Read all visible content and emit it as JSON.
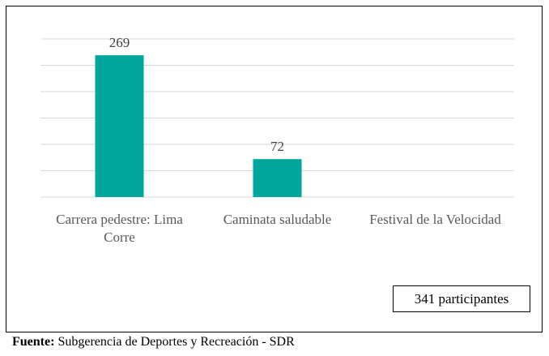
{
  "chart_data": {
    "type": "bar",
    "categories": [
      "Carrera pedestre: Lima Corre",
      "Caminata saludable",
      "Festival de la Velocidad"
    ],
    "values": [
      269,
      72,
      null
    ],
    "color": "#00a69c",
    "ylim": [
      0,
      300
    ],
    "yticks": [
      0,
      50,
      100,
      150,
      200,
      250,
      300
    ],
    "grid": true,
    "annotation": "341 participantes"
  },
  "source": {
    "label": "Fuente:",
    "text": "Subgerencia de Deportes y Recreación - SDR"
  }
}
